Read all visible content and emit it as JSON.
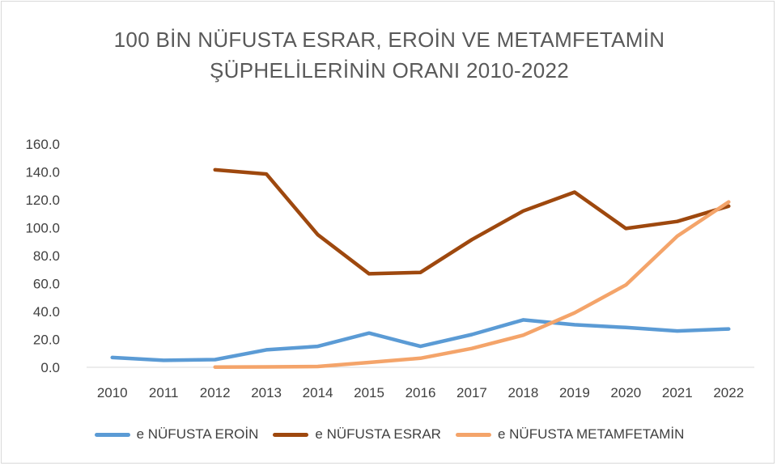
{
  "colors": {
    "heroin": "#5b9bd5",
    "cannabis": "#9e480e",
    "meth": "#f4a46a",
    "axis_text": "#404040",
    "title_text": "#595959",
    "axis_line": "#d9d9d9"
  },
  "chart_data": {
    "type": "line",
    "title_lines": [
      "100 BİN NÜFUSTA ESRAR, EROİN VE METAMFETAMİN",
      "ŞÜPHELİLERİNİN ORANI 2010-2022"
    ],
    "x": [
      "2010",
      "2011",
      "2012",
      "2013",
      "2014",
      "2015",
      "2016",
      "2017",
      "2018",
      "2019",
      "2020",
      "2021",
      "2022"
    ],
    "y_ticks": [
      "0.0",
      "20.0",
      "40.0",
      "60.0",
      "80.0",
      "100.0",
      "120.0",
      "140.0",
      "160.0"
    ],
    "ylim": [
      0,
      160
    ],
    "grid": false,
    "legend_position": "bottom",
    "series": [
      {
        "key": "heroin",
        "name": "e NÜFUSTA EROİN",
        "values": [
          7.0,
          5.0,
          5.5,
          12.5,
          15.0,
          24.5,
          15.0,
          23.5,
          34.0,
          30.5,
          28.5,
          26.0,
          27.5
        ]
      },
      {
        "key": "cannabis",
        "name": "e NÜFUSTA ESRAR",
        "values": [
          null,
          null,
          141.5,
          138.5,
          95.0,
          67.0,
          68.0,
          91.5,
          112.0,
          125.5,
          99.5,
          104.5,
          115.5
        ]
      },
      {
        "key": "meth",
        "name": "e NÜFUSTA METAMFETAMİN",
        "values": [
          null,
          null,
          0.2,
          0.3,
          0.6,
          3.5,
          6.5,
          13.5,
          23.0,
          39.0,
          59.0,
          94.0,
          118.5
        ]
      }
    ]
  }
}
